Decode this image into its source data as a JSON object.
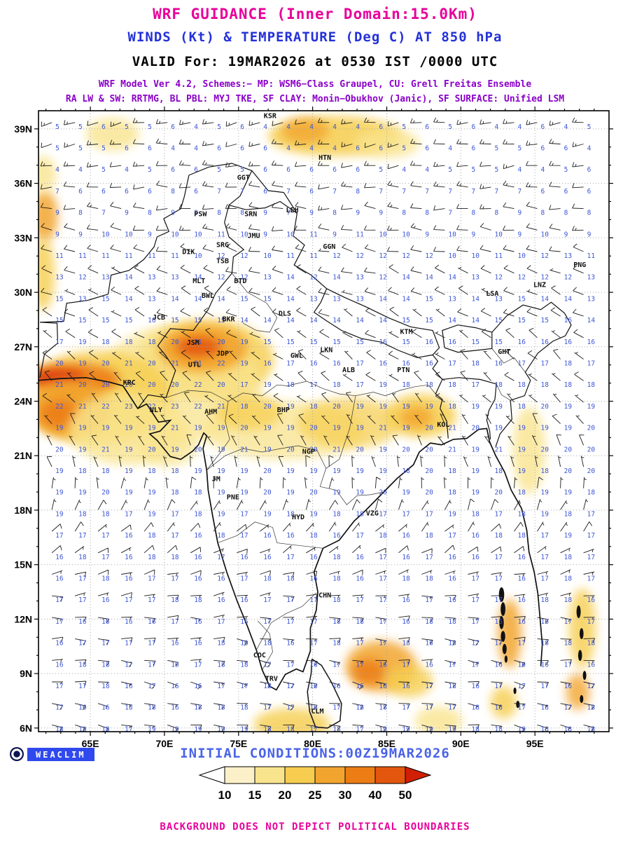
{
  "header": {
    "title1": "WRF GUIDANCE (Inner Domain:15.0Km)",
    "title2": "WINDS (Kt) & TEMPERATURE (Deg C) AT 850 hPa",
    "title3": "VALID For: 19MAR2026 at 0530 IST /0000 UTC",
    "scheme_line1": "WRF Model Ver 4.2, Schemes:− MP: WSM6−Class Graupel, CU: Grell Freitas Ensemble",
    "scheme_line2": "RA LW & SW: RRTMG, BL PBL: MYJ TKE, SF CLAY: Monin−Obukhov (Janic), SF SURFACE: Unified LSM",
    "colors": {
      "title1": "#e8009b",
      "title2": "#2431d8",
      "title3": "#000000",
      "schemes": "#8a00c8"
    }
  },
  "footer": {
    "logo_text": "WEACLIM",
    "initial_conditions": "INITIAL CONDITIONS:00Z19MAR2026",
    "disclaimer": "BACKGROUND DOES NOT DEPICT POLITICAL BOUNDARIES",
    "initial_color": "#4a63e8",
    "disclaimer_color": "#e8009b",
    "logo_bg": "#2f49ee",
    "logo_ring": "#0d1550"
  },
  "chart_data": {
    "type": "map",
    "title": "WINDS (Kt) & TEMPERATURE (Deg C) AT 850 hPa",
    "valid_time": "19MAR2026 at 0530 IST /0000 UTC",
    "projection": {
      "lon_range": [
        61.5,
        100.0
      ],
      "lat_range": [
        5.8,
        40.0
      ]
    },
    "axes": {
      "lat_ticks": [
        {
          "label": "39N",
          "value": 39
        },
        {
          "label": "36N",
          "value": 36
        },
        {
          "label": "33N",
          "value": 33
        },
        {
          "label": "30N",
          "value": 30
        },
        {
          "label": "27N",
          "value": 27
        },
        {
          "label": "24N",
          "value": 24
        },
        {
          "label": "21N",
          "value": 21
        },
        {
          "label": "18N",
          "value": 18
        },
        {
          "label": "15N",
          "value": 15
        },
        {
          "label": "12N",
          "value": 12
        },
        {
          "label": "9N",
          "value": 9
        },
        {
          "label": "6N",
          "value": 6
        }
      ],
      "lon_ticks": [
        {
          "label": "65E",
          "value": 65
        },
        {
          "label": "70E",
          "value": 70
        },
        {
          "label": "75E",
          "value": 75
        },
        {
          "label": "80E",
          "value": 80
        },
        {
          "label": "85E",
          "value": 85
        },
        {
          "label": "90E",
          "value": 90
        },
        {
          "label": "95E",
          "value": 95
        }
      ],
      "grid_step_lat": 3,
      "grid_step_lon": 5,
      "grid_on": true
    },
    "legend": {
      "values": [
        10,
        15,
        20,
        25,
        30,
        40,
        50
      ],
      "colors": [
        "#fcf0c8",
        "#f9e48e",
        "#f6cd4e",
        "#f2a52e",
        "#ec7d14",
        "#e3560e"
      ],
      "arrow_left_color": "#ffffff",
      "arrow_right_color": "#d01f05"
    },
    "colors": {
      "temp_value": "#3d56d6",
      "barb": "#1c1c1c",
      "grid": "#a8a8a8",
      "outline": "#111111",
      "frame": "#000000",
      "station_label": "#111111",
      "axis_label": "#000000"
    },
    "stations": [
      {
        "id": "KSR",
        "lon": 76.7,
        "lat": 39.6
      },
      {
        "id": "HTN",
        "lon": 80.4,
        "lat": 37.3
      },
      {
        "id": "GGT",
        "lon": 74.9,
        "lat": 36.2
      },
      {
        "id": "LEH",
        "lon": 78.2,
        "lat": 34.4
      },
      {
        "id": "PSW",
        "lon": 72.0,
        "lat": 34.2
      },
      {
        "id": "SRN",
        "lon": 75.4,
        "lat": 34.2
      },
      {
        "id": "JMU",
        "lon": 75.6,
        "lat": 33.0
      },
      {
        "id": "DIK",
        "lon": 71.2,
        "lat": 32.1
      },
      {
        "id": "SRG",
        "lon": 73.5,
        "lat": 32.5
      },
      {
        "id": "TSB",
        "lon": 73.5,
        "lat": 31.6
      },
      {
        "id": "GGN",
        "lon": 80.7,
        "lat": 32.4
      },
      {
        "id": "MLT",
        "lon": 71.9,
        "lat": 30.5
      },
      {
        "id": "BTD",
        "lon": 74.7,
        "lat": 30.5
      },
      {
        "id": "BWL",
        "lon": 72.5,
        "lat": 29.7
      },
      {
        "id": "LSA",
        "lon": 91.7,
        "lat": 29.8
      },
      {
        "id": "LNZ",
        "lon": 94.9,
        "lat": 30.3
      },
      {
        "id": "PNG",
        "lon": 97.6,
        "lat": 31.4
      },
      {
        "id": "JCB",
        "lon": 69.2,
        "lat": 28.5
      },
      {
        "id": "BKR",
        "lon": 73.9,
        "lat": 28.4
      },
      {
        "id": "DLS",
        "lon": 77.7,
        "lat": 28.7
      },
      {
        "id": "KTM",
        "lon": 85.9,
        "lat": 27.7
      },
      {
        "id": "JSM",
        "lon": 71.5,
        "lat": 27.1
      },
      {
        "id": "JDP",
        "lon": 73.5,
        "lat": 26.5
      },
      {
        "id": "LKN",
        "lon": 80.5,
        "lat": 26.7
      },
      {
        "id": "GWL",
        "lon": 78.5,
        "lat": 26.4
      },
      {
        "id": "UTL",
        "lon": 71.6,
        "lat": 25.9
      },
      {
        "id": "ALB",
        "lon": 82.0,
        "lat": 25.6
      },
      {
        "id": "PTN",
        "lon": 85.7,
        "lat": 25.6
      },
      {
        "id": "GHT",
        "lon": 92.5,
        "lat": 26.6
      },
      {
        "id": "KRC",
        "lon": 67.2,
        "lat": 24.9
      },
      {
        "id": "NLY",
        "lon": 69.0,
        "lat": 23.4
      },
      {
        "id": "AHM",
        "lon": 72.7,
        "lat": 23.3
      },
      {
        "id": "BHP",
        "lon": 77.6,
        "lat": 23.4
      },
      {
        "id": "KOL",
        "lon": 88.4,
        "lat": 22.6
      },
      {
        "id": "NGP",
        "lon": 79.3,
        "lat": 21.1
      },
      {
        "id": "JM",
        "lon": 73.2,
        "lat": 19.6
      },
      {
        "id": "PNE",
        "lon": 74.2,
        "lat": 18.6
      },
      {
        "id": "HYD",
        "lon": 78.6,
        "lat": 17.5
      },
      {
        "id": "VZG",
        "lon": 83.6,
        "lat": 17.7
      },
      {
        "id": "CHN",
        "lon": 80.4,
        "lat": 13.2
      },
      {
        "id": "COC",
        "lon": 76.0,
        "lat": 9.9
      },
      {
        "id": "TRV",
        "lon": 76.8,
        "lat": 8.6
      },
      {
        "id": "CLM",
        "lon": 79.9,
        "lat": 6.8
      }
    ],
    "temperature_wind_profile": [
      {
        "lat": 40,
        "temp": 5,
        "wind_dir_deg": 260,
        "wind_speed_kt": 15
      },
      {
        "lat": 37,
        "temp": 5,
        "wind_dir_deg": 265,
        "wind_speed_kt": 13
      },
      {
        "lat": 34,
        "temp": 9,
        "wind_dir_deg": 275,
        "wind_speed_kt": 11
      },
      {
        "lat": 31,
        "temp": 13,
        "wind_dir_deg": 290,
        "wind_speed_kt": 9
      },
      {
        "lat": 28,
        "temp": 15,
        "wind_dir_deg": 300,
        "wind_speed_kt": 8
      },
      {
        "lat": 26,
        "temp": 17,
        "wind_dir_deg": 310,
        "wind_speed_kt": 8
      },
      {
        "lat": 24,
        "temp": 19,
        "wind_dir_deg": 315,
        "wind_speed_kt": 7
      },
      {
        "lat": 22,
        "temp": 20,
        "wind_dir_deg": 330,
        "wind_speed_kt": 6
      },
      {
        "lat": 20,
        "temp": 19,
        "wind_dir_deg": 350,
        "wind_speed_kt": 6
      },
      {
        "lat": 18,
        "temp": 18,
        "wind_dir_deg": 25,
        "wind_speed_kt": 6
      },
      {
        "lat": 16,
        "temp": 17,
        "wind_dir_deg": 55,
        "wind_speed_kt": 7
      },
      {
        "lat": 14,
        "temp": 17,
        "wind_dir_deg": 80,
        "wind_speed_kt": 7
      },
      {
        "lat": 12,
        "temp": 17,
        "wind_dir_deg": 90,
        "wind_speed_kt": 7
      },
      {
        "lat": 10,
        "temp": 17,
        "wind_dir_deg": 95,
        "wind_speed_kt": 8
      },
      {
        "lat": 8,
        "temp": 17,
        "wind_dir_deg": 100,
        "wind_speed_kt": 8
      },
      {
        "lat": 6,
        "temp": 18,
        "wind_dir_deg": 100,
        "wind_speed_kt": 8
      }
    ],
    "warm_bias_regions": [
      {
        "lon_min": 61.5,
        "lon_max": 74,
        "lat_min": 23,
        "lat_max": 28,
        "delta": 3
      },
      {
        "lon_min": 69,
        "lon_max": 75,
        "lat_min": 25.5,
        "lat_max": 28,
        "delta": 2
      }
    ],
    "shading_regions": [
      {
        "lon": 72.8,
        "lat": 26.3,
        "rx": 4.6,
        "ry": 2.2,
        "color": "#f6cd4e",
        "opacity": 0.8
      },
      {
        "lon": 71.0,
        "lat": 25.0,
        "rx": 5.5,
        "ry": 3.2,
        "color": "#f9e48e",
        "opacity": 0.75
      },
      {
        "lon": 72.6,
        "lat": 26.9,
        "rx": 3.0,
        "ry": 1.3,
        "color": "#f2a52e",
        "opacity": 0.95
      },
      {
        "lon": 72.3,
        "lat": 27.0,
        "rx": 1.5,
        "ry": 0.55,
        "color": "#e3560e",
        "opacity": 0.9
      },
      {
        "lon": 65.5,
        "lat": 24.2,
        "rx": 5.0,
        "ry": 2.6,
        "color": "#f6cd4e",
        "opacity": 0.8
      },
      {
        "lon": 63.8,
        "lat": 25.2,
        "rx": 3.2,
        "ry": 0.9,
        "color": "#ec7d14",
        "opacity": 0.9
      },
      {
        "lon": 62.8,
        "lat": 25.3,
        "rx": 1.8,
        "ry": 0.4,
        "color": "#d93207",
        "opacity": 0.9
      },
      {
        "lon": 63.6,
        "lat": 23.6,
        "rx": 2.8,
        "ry": 1.6,
        "color": "#f2a52e",
        "opacity": 0.9
      },
      {
        "lon": 63.0,
        "lat": 23.3,
        "rx": 1.4,
        "ry": 0.8,
        "color": "#ec7d14",
        "opacity": 0.9
      },
      {
        "lon": 67.5,
        "lat": 22.5,
        "rx": 4.0,
        "ry": 2.0,
        "color": "#f9e48e",
        "opacity": 0.8
      },
      {
        "lon": 61.9,
        "lat": 34.2,
        "rx": 0.9,
        "ry": 1.4,
        "color": "#f2a52e",
        "opacity": 0.85
      },
      {
        "lon": 61.8,
        "lat": 31.0,
        "rx": 0.8,
        "ry": 2.0,
        "color": "#f6cd4e",
        "opacity": 0.8
      },
      {
        "lon": 61.8,
        "lat": 36.5,
        "rx": 0.9,
        "ry": 1.0,
        "color": "#f9e48e",
        "opacity": 0.8
      },
      {
        "lon": 81.5,
        "lat": 38.6,
        "rx": 4.5,
        "ry": 1.1,
        "color": "#f6cd4e",
        "opacity": 0.85
      },
      {
        "lon": 79.5,
        "lat": 38.9,
        "rx": 1.6,
        "ry": 0.7,
        "color": "#f2a52e",
        "opacity": 0.8
      },
      {
        "lon": 85.0,
        "lat": 38.2,
        "rx": 2.2,
        "ry": 0.8,
        "color": "#f9e48e",
        "opacity": 0.8
      },
      {
        "lon": 66.5,
        "lat": 38.7,
        "rx": 1.8,
        "ry": 0.9,
        "color": "#f9e48e",
        "opacity": 0.8
      },
      {
        "lon": 78.0,
        "lat": 22.4,
        "rx": 5.5,
        "ry": 1.6,
        "color": "#f9e48e",
        "opacity": 0.75
      },
      {
        "lon": 82.5,
        "lat": 22.8,
        "rx": 3.5,
        "ry": 1.4,
        "color": "#f6cd4e",
        "opacity": 0.7
      },
      {
        "lon": 75.7,
        "lat": 23.4,
        "rx": 2.2,
        "ry": 1.0,
        "color": "#f6cd4e",
        "opacity": 0.7
      },
      {
        "lon": 70.2,
        "lat": 21.6,
        "rx": 2.0,
        "ry": 1.2,
        "color": "#f9e48e",
        "opacity": 0.75
      },
      {
        "lon": 87.3,
        "lat": 23.2,
        "rx": 2.4,
        "ry": 1.2,
        "color": "#f6cd4e",
        "opacity": 0.85
      },
      {
        "lon": 87.0,
        "lat": 23.1,
        "rx": 1.1,
        "ry": 0.6,
        "color": "#f2a52e",
        "opacity": 0.85
      },
      {
        "lon": 94.6,
        "lat": 21.3,
        "rx": 1.1,
        "ry": 2.4,
        "color": "#f9e48e",
        "opacity": 0.8
      },
      {
        "lon": 84.6,
        "lat": 9.4,
        "rx": 2.4,
        "ry": 1.4,
        "color": "#f2a52e",
        "opacity": 0.85
      },
      {
        "lon": 83.8,
        "lat": 9.1,
        "rx": 1.1,
        "ry": 0.7,
        "color": "#ec7d14",
        "opacity": 0.85
      },
      {
        "lon": 86.5,
        "lat": 8.6,
        "rx": 1.6,
        "ry": 0.9,
        "color": "#f6cd4e",
        "opacity": 0.8
      },
      {
        "lon": 93.3,
        "lat": 11.2,
        "rx": 0.8,
        "ry": 1.9,
        "color": "#f2a52e",
        "opacity": 0.85
      },
      {
        "lon": 92.9,
        "lat": 7.4,
        "rx": 0.9,
        "ry": 0.9,
        "color": "#f6cd4e",
        "opacity": 0.8
      },
      {
        "lon": 78.6,
        "lat": 6.2,
        "rx": 2.6,
        "ry": 0.9,
        "color": "#f6cd4e",
        "opacity": 0.8
      },
      {
        "lon": 88.5,
        "lat": 6.4,
        "rx": 1.6,
        "ry": 0.8,
        "color": "#f9e48e",
        "opacity": 0.8
      },
      {
        "lon": 98.2,
        "lat": 11.5,
        "rx": 0.9,
        "ry": 2.2,
        "color": "#f6cd4e",
        "opacity": 0.8
      },
      {
        "lon": 97.9,
        "lat": 8.0,
        "rx": 0.8,
        "ry": 1.0,
        "color": "#f2a52e",
        "opacity": 0.8
      }
    ]
  }
}
